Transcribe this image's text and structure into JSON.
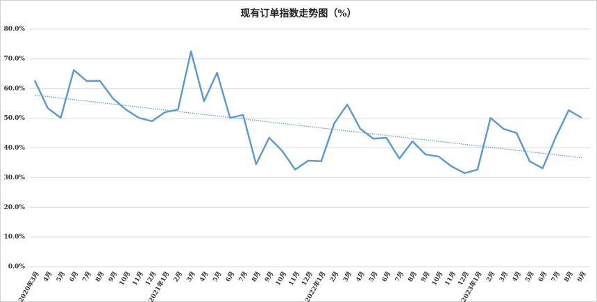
{
  "chart_data": {
    "type": "line",
    "title": "现有订单指数走势图（%）",
    "categories": [
      "2020年3月",
      "4月",
      "5月",
      "6月",
      "7月",
      "8月",
      "9月",
      "10月",
      "11月",
      "12月",
      "2021年1月",
      "2月",
      "3月",
      "4月",
      "5月",
      "6月",
      "7月",
      "8月",
      "9月",
      "10月",
      "11月",
      "12月",
      "2022年1月",
      "2月",
      "3月",
      "4月",
      "5月",
      "6月",
      "7月",
      "8月",
      "9月",
      "10月",
      "11月",
      "12月",
      "2023年1月",
      "2月",
      "3月",
      "4月",
      "5月",
      "6月",
      "7月",
      "8月",
      "9月"
    ],
    "series": [
      {
        "color": "#5b9bd5",
        "values": [
          62.7,
          53.4,
          50.1,
          66.2,
          62.5,
          62.6,
          56.7,
          52.9,
          50.1,
          49.0,
          52.0,
          52.9,
          72.5,
          55.7,
          65.3,
          50.1,
          51.1,
          34.5,
          43.4,
          39.0,
          32.7,
          35.7,
          35.5,
          48.3,
          54.6,
          46.4,
          43.1,
          43.4,
          36.4,
          42.2,
          37.8,
          37.1,
          33.8,
          31.5,
          32.7,
          50.1,
          46.4,
          45.0,
          35.5,
          33.1,
          43.6,
          52.7,
          50.1
        ]
      }
    ],
    "trendline": true,
    "ylim": [
      0,
      80
    ],
    "yticks": [
      {
        "value": 0,
        "label": "0.0%"
      },
      {
        "value": 10,
        "label": "10.0%"
      },
      {
        "value": 20,
        "label": "20.0%"
      },
      {
        "value": 30,
        "label": "30.0%"
      },
      {
        "value": 40,
        "label": "40.0%"
      },
      {
        "value": 50,
        "label": "50.0%"
      },
      {
        "value": 60,
        "label": "60.0%"
      },
      {
        "value": 70,
        "label": "70.0%"
      },
      {
        "value": 80,
        "label": "80.0%"
      }
    ],
    "grid": true
  }
}
